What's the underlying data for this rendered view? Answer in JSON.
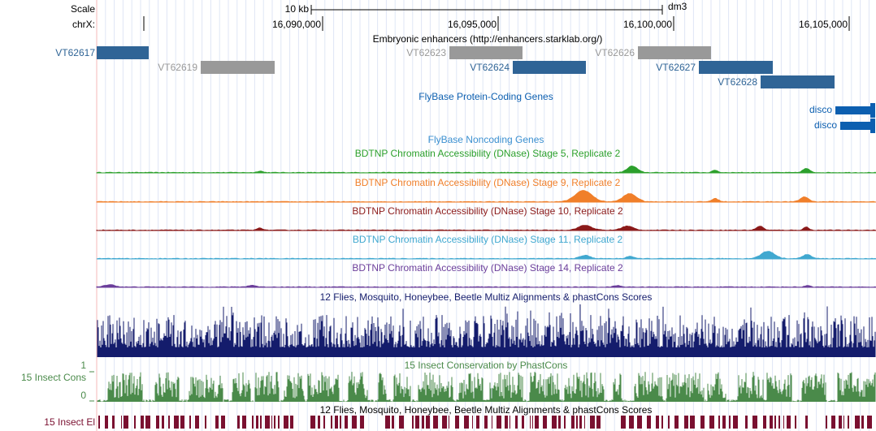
{
  "scale": {
    "label": "Scale",
    "length": "10 kb",
    "assembly": "dm3"
  },
  "ruler": {
    "chrom": "chrX:",
    "positions": [
      "16,090,000",
      "16,095,000",
      "16,100,000",
      "16,105,000"
    ]
  },
  "enhancers": {
    "title": "Embryonic enhancers (http://enhancers.starklab.org/)",
    "features": [
      {
        "name": "VT62617",
        "color": "#2f6496"
      },
      {
        "name": "VT62619",
        "color": "#999999"
      },
      {
        "name": "VT62623",
        "color": "#999999"
      },
      {
        "name": "VT62626",
        "color": "#999999"
      },
      {
        "name": "VT62624",
        "color": "#2f6496"
      },
      {
        "name": "VT62627",
        "color": "#2f6496"
      },
      {
        "name": "VT62628",
        "color": "#2f6496"
      }
    ]
  },
  "coding_genes": {
    "title": "FlyBase Protein-Coding Genes",
    "color": "#0c5fb0",
    "genes": [
      "disco",
      "disco"
    ]
  },
  "noncoding_genes": {
    "title": "FlyBase Noncoding Genes",
    "color": "#3a8fd0"
  },
  "dnase_tracks": [
    {
      "title": "BDTNP Chromatin Accessibility (DNase) Stage 5, Replicate 2",
      "color": "#2ca02c"
    },
    {
      "title": "BDTNP Chromatin Accessibility (DNase) Stage 9, Replicate 2",
      "color": "#f07f2a"
    },
    {
      "title": "BDTNP Chromatin Accessibility (DNase) Stage 10, Replicate 2",
      "color": "#8b1a1a"
    },
    {
      "title": "BDTNP Chromatin Accessibility (DNase) Stage 11, Replicate 2",
      "color": "#40a8d0"
    },
    {
      "title": "BDTNP Chromatin Accessibility (DNase) Stage 14, Replicate 2",
      "color": "#6a3d9a"
    }
  ],
  "multiz": {
    "title": "12 Flies, Mosquito, Honeybee, Beetle Multiz Alignments & phastCons Scores",
    "color": "#141c6c"
  },
  "phastcons": {
    "title": "15 Insect Conservation by PhastCons",
    "label": "15 Insect Cons",
    "max": "1",
    "min": "0",
    "color": "#4a8a4a"
  },
  "elements": {
    "title": "12 Flies, Mosquito, Honeybee, Beetle Multiz Alignments & phastCons Scores",
    "label": "15 Insect El",
    "color": "#7a1030"
  }
}
